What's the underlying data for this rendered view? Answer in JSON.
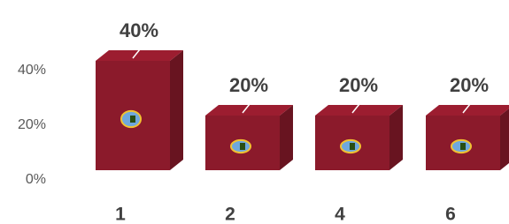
{
  "chart_data": {
    "type": "bar3d",
    "categories": [
      "1",
      "2",
      "4",
      "6"
    ],
    "values": [
      40,
      20,
      20,
      20
    ],
    "value_labels": [
      "40%",
      "20%",
      "20%",
      "20%"
    ],
    "color": "#8b1a2b",
    "ylim": [
      0,
      40
    ],
    "yticks": [
      {
        "value": 0,
        "label": "0%"
      },
      {
        "value": 20,
        "label": "20%"
      },
      {
        "value": 40,
        "label": "40%"
      }
    ],
    "grid": false
  }
}
